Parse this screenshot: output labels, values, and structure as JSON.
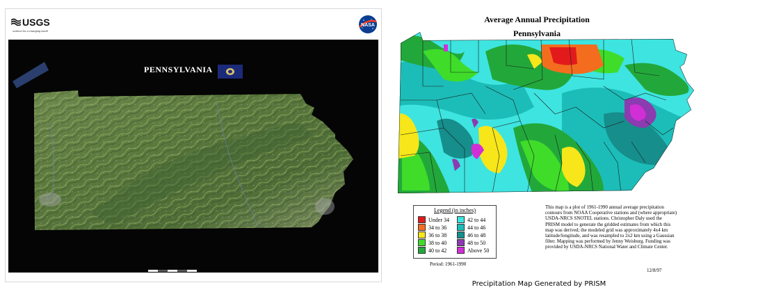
{
  "poster": {
    "agency_logo_text": "USGS",
    "agency_tagline": "science for a changing world",
    "state_name": "PENNSYLVANIA",
    "nasa_logo_text": "NASA"
  },
  "precip_map": {
    "title_line1": "Average Annual Precipitation",
    "title_line2": "Pennsylvania",
    "legend": {
      "title": "Legend (in inches)",
      "items": [
        {
          "label": "Under 34",
          "color": "#e31a1c"
        },
        {
          "label": "34 to 36",
          "color": "#f46d1e"
        },
        {
          "label": "36 to 38",
          "color": "#f7e61a"
        },
        {
          "label": "38 to 40",
          "color": "#3fdc2a"
        },
        {
          "label": "40 to 42",
          "color": "#22a83a"
        },
        {
          "label": "42 to 44",
          "color": "#3ee4e0"
        },
        {
          "label": "44 to 46",
          "color": "#1cbdb8"
        },
        {
          "label": "46 to 48",
          "color": "#168e8c"
        },
        {
          "label": "48 to 50",
          "color": "#8c3bb0"
        },
        {
          "label": "Above 50",
          "color": "#d12fd6"
        }
      ]
    },
    "period": "Period: 1961-1990",
    "description": "This map is a plot of 1961-1990 annual average precipitation contours from NOAA Cooperative stations and (where appropriate) USDA-NRCS SNOTEL stations. Christopher Daly used the PRISM model to generate the gridded estimates from which this map was derived; the modeled grid was approximately 4x4 km latitude/longitude, and was resampled to 2x2 km using a Gaussian filter. Mapping was performed by Jenny Weisburg. Funding was provided by USDA-NRCS National Water and Climate Center.",
    "date": "12/8/97"
  },
  "caption": "Precipitation Map Generated by PRISM"
}
